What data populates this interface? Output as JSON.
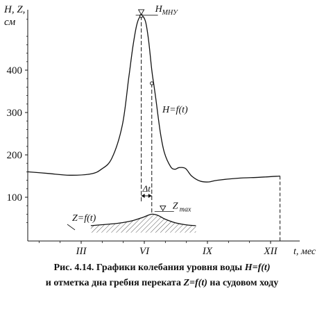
{
  "chart_data": {
    "type": "line",
    "y_axis_label_line1": "H, Z,",
    "y_axis_label_line2": "см",
    "x_axis_label": "t, мес",
    "y_ticks": [
      100,
      200,
      300,
      400
    ],
    "x_ticks": [
      "III",
      "VI",
      "IX",
      "XII"
    ],
    "x_tick_months": [
      3,
      6,
      9,
      12
    ],
    "ylim": [
      30,
      540
    ],
    "xlim": [
      0,
      13
    ],
    "series": [
      {
        "name": "H=f(t)",
        "x": [
          0.0,
          1.0,
          2.0,
          3.0,
          3.5,
          4.0,
          4.5,
          4.8,
          5.0,
          5.2,
          5.4,
          5.6,
          5.75,
          5.9,
          6.0,
          6.1,
          6.3,
          6.5,
          6.8,
          7.0,
          7.2,
          7.5,
          7.8,
          8.2,
          8.6,
          9.0,
          10.0,
          11.0,
          12.0
        ],
        "y": [
          160,
          156,
          152,
          155,
          166,
          192,
          270,
          380,
          455,
          510,
          528,
          515,
          470,
          400,
          365,
          330,
          255,
          205,
          172,
          166,
          170,
          168,
          150,
          138,
          136,
          140,
          145,
          147,
          150
        ]
      },
      {
        "name": "Z=f(t)",
        "x": [
          3.0,
          3.5,
          4.0,
          4.5,
          5.0,
          5.5,
          5.9,
          6.2,
          6.5,
          7.0,
          7.5,
          8.0
        ],
        "y": [
          33,
          35,
          37,
          40,
          45,
          53,
          60,
          57,
          49,
          40,
          35,
          33
        ]
      }
    ],
    "annotations": {
      "h_label": "H=f(t)",
      "z_label": "Z=f(t)",
      "h_mnu": "H",
      "h_mnu_sub": "МНУ",
      "z_max": "Z",
      "z_max_sub": "max",
      "delta_t": "Δt"
    },
    "grid": false
  },
  "caption": {
    "line1_text": "Рис. 4.14. Графики колебания уровня воды ",
    "line1_math": "H=f(t)",
    "line2_text": "и отметка дна гребня переката ",
    "line2_math": "Z=f(t)",
    "line2_tail": " на судовом ходу"
  }
}
